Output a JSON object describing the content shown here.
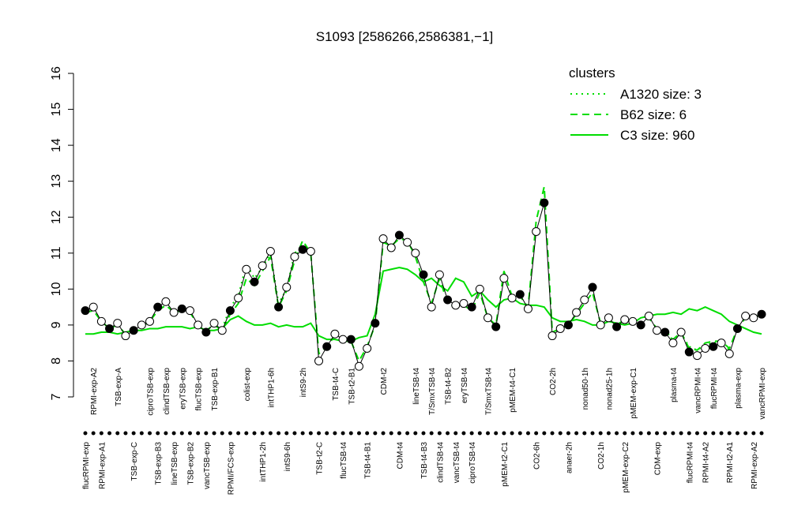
{
  "chart_data": {
    "type": "line",
    "title": "S1093 [2586266,2586381,−1]",
    "ylim": [
      7,
      16
    ],
    "yticks": [
      7,
      8,
      9,
      10,
      11,
      12,
      13,
      14,
      15,
      16
    ],
    "categories": [
      "flucRPMI-exp",
      "RPMI-exp-A2",
      "RPMI-exp-A1",
      null,
      "TSB-exp-A",
      null,
      "TSB-exp-C",
      null,
      "ciproTSB-exp",
      "TSB-exp-B3",
      "clindTSB-exp",
      "lineTSB-exp",
      "eryTSB-exp",
      "TSB-exp-B2",
      "flucTSB-exp",
      "vancTSB-exp",
      "TSB-exp-B1",
      null,
      "RPMI/FCS-exp",
      null,
      "colist-exp",
      null,
      "intTHP1-2h",
      "intTHP1-6h",
      null,
      "intS9-6h",
      null,
      "intS9-2h",
      null,
      "TSB-t2-C",
      null,
      "TSB-t4-C",
      "flucTSB-t4",
      "TSB-t2-B1",
      null,
      "TSB-t4-B1",
      null,
      "CDM-t2",
      null,
      "CDM-t4",
      null,
      "lineTSB-t4",
      "TSB-t4-B3",
      "T/SmxTSB-t4",
      "clindTSB-t4",
      "TSB-t4-B2",
      "vancTSB-t4",
      "eryTSB-t4",
      "ciproTSB-t4",
      null,
      "T/SmxTSB-t4",
      null,
      "pMEM-t2-C1",
      "pMEM-t4-C1",
      null,
      null,
      "CO2-6h",
      null,
      "CO2-2h",
      null,
      "anaer-2h",
      null,
      "nonad50-1h",
      null,
      "CO2-1h",
      "nonad25-1h",
      null,
      "pMEM-exp-C2",
      "pMEM-exp-C1",
      null,
      null,
      "CDM-exp",
      null,
      "plasma-t4",
      null,
      "flucRPMI-t4",
      "vancRPMI-t4",
      "RPMI-t4-A2",
      "flucRPMI-t4",
      null,
      "RPMI-t2-A1",
      "plasma-exp",
      null,
      "RPMI-exp-A2",
      "vancRPMI-exp"
    ],
    "values": [
      9.4,
      9.5,
      9.1,
      8.9,
      9.05,
      8.7,
      8.85,
      9.0,
      9.1,
      9.5,
      9.65,
      9.35,
      9.45,
      9.4,
      9.0,
      8.8,
      9.05,
      8.85,
      9.4,
      9.75,
      10.55,
      10.2,
      10.65,
      11.05,
      9.5,
      10.05,
      10.9,
      11.1,
      11.05,
      8.0,
      8.4,
      8.75,
      8.6,
      8.6,
      7.85,
      8.35,
      9.05,
      11.4,
      11.15,
      11.5,
      11.3,
      11.0,
      10.4,
      9.5,
      10.4,
      9.7,
      9.55,
      9.6,
      9.5,
      10.0,
      9.2,
      8.95,
      10.3,
      9.75,
      9.85,
      9.45,
      11.6,
      12.4,
      8.7,
      8.9,
      9.0,
      9.35,
      9.7,
      10.05,
      9.0,
      9.2,
      8.95,
      9.15,
      9.1,
      9.0,
      9.25,
      8.85,
      8.8,
      8.5,
      8.8,
      8.25,
      8.15,
      8.35,
      8.4,
      8.5,
      8.2,
      8.9,
      9.25,
      9.2,
      9.3
    ],
    "color": "#000000",
    "legend_title": "clusters",
    "legend_color": "#00dd00",
    "clusters": [
      {
        "name": "A1320 size: 3",
        "color": "#00dd00",
        "dash": "dotted",
        "values": [
          null,
          null,
          null,
          null,
          null,
          null,
          null,
          null,
          null,
          null,
          null,
          null,
          null,
          null,
          null,
          null,
          null,
          8.9,
          9.5,
          9.8,
          10.7,
          10.3,
          10.6,
          11.0,
          9.6,
          10.0,
          11.0,
          11.2,
          11.0,
          null,
          null,
          null,
          null,
          null,
          null,
          null,
          null,
          null,
          null,
          null,
          null,
          null,
          null,
          null,
          null,
          null,
          null,
          null,
          null,
          null,
          null,
          null,
          null,
          null,
          null,
          null,
          null,
          null,
          null,
          null,
          null,
          null,
          null,
          null,
          null,
          null,
          null,
          null,
          null,
          null,
          null,
          8.9,
          8.75,
          8.6,
          8.75,
          8.4,
          8.3,
          8.45,
          8.5,
          8.55,
          8.3,
          null,
          null,
          null,
          null
        ]
      },
      {
        "name": "B62 size: 6",
        "color": "#00dd00",
        "dash": "dashed",
        "values": [
          9.35,
          9.4,
          9.1,
          8.9,
          9.0,
          8.75,
          8.85,
          8.95,
          9.1,
          9.4,
          9.55,
          9.35,
          9.4,
          9.35,
          9.0,
          8.85,
          9.0,
          8.85,
          9.3,
          9.6,
          10.3,
          10.1,
          10.5,
          10.9,
          9.5,
          9.95,
          10.8,
          11.35,
          11.0,
          8.2,
          8.4,
          8.7,
          8.6,
          8.55,
          8.0,
          8.4,
          9.0,
          11.3,
          11.2,
          11.4,
          11.35,
          10.9,
          10.2,
          9.6,
          10.3,
          9.6,
          9.5,
          9.55,
          9.4,
          9.9,
          9.2,
          9.0,
          10.5,
          9.8,
          9.8,
          9.5,
          11.9,
          12.85,
          8.8,
          8.9,
          9.0,
          9.3,
          9.6,
          9.9,
          9.05,
          9.15,
          9.0,
          9.15,
          9.1,
          9.0,
          9.2,
          8.9,
          8.85,
          8.6,
          8.8,
          8.35,
          8.3,
          8.5,
          8.55,
          8.55,
          8.35,
          8.9,
          9.2,
          9.2,
          9.3
        ]
      },
      {
        "name": "C3 size: 960",
        "color": "#00dd00",
        "dash": "solid",
        "values": [
          8.75,
          8.75,
          8.8,
          8.8,
          8.75,
          8.8,
          8.85,
          8.85,
          8.9,
          8.9,
          8.95,
          8.95,
          8.95,
          8.9,
          8.95,
          8.85,
          8.85,
          8.9,
          9.15,
          9.25,
          9.1,
          9.0,
          9.0,
          9.05,
          8.95,
          9.0,
          8.95,
          8.95,
          9.05,
          8.7,
          8.6,
          8.6,
          8.55,
          8.55,
          8.65,
          8.7,
          9.3,
          10.5,
          10.55,
          10.6,
          10.55,
          10.4,
          10.2,
          10.3,
          10.1,
          9.95,
          10.3,
          10.2,
          9.8,
          9.95,
          9.7,
          9.5,
          9.7,
          9.75,
          9.6,
          9.55,
          9.55,
          9.5,
          9.2,
          9.1,
          9.1,
          9.15,
          9.1,
          9.0,
          9.0,
          9.1,
          9.05,
          9.0,
          9.05,
          9.2,
          9.25,
          9.3,
          9.3,
          9.35,
          9.3,
          9.45,
          9.4,
          9.5,
          9.4,
          9.3,
          9.1,
          9.0,
          8.9,
          8.8,
          8.75
        ]
      }
    ]
  }
}
